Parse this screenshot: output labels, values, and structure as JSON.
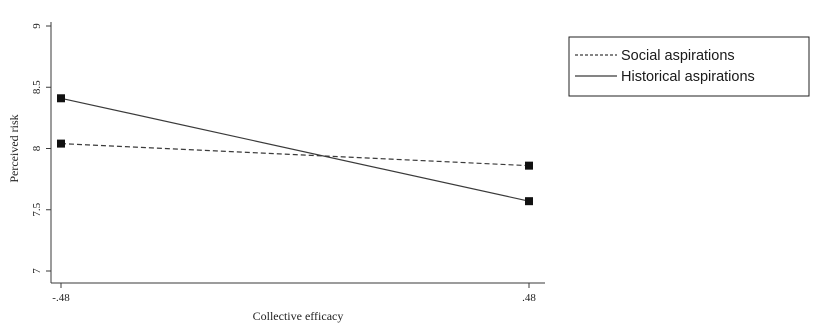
{
  "chart_data": {
    "type": "line",
    "title": "",
    "xlabel": "Collective efficacy",
    "ylabel": "Perceived risk",
    "x": [
      -0.48,
      0.48
    ],
    "x_tick_labels": [
      "-.48",
      ".48"
    ],
    "xlim": [
      -0.48,
      0.48
    ],
    "ylim": [
      7,
      9
    ],
    "y_ticks": [
      7,
      7.5,
      8,
      8.5,
      9
    ],
    "y_tick_labels": [
      "7",
      "7.5",
      "8",
      "8.5",
      "9"
    ],
    "grid": false,
    "legend_position": "top-right outside",
    "series": [
      {
        "name": "Social aspirations",
        "line_style": "dashed",
        "marker": "square",
        "values": [
          8.04,
          7.86
        ]
      },
      {
        "name": "Historical aspirations",
        "line_style": "solid",
        "marker": "square",
        "values": [
          8.41,
          7.57
        ]
      }
    ],
    "colors": {
      "line": "#3a3a3a",
      "marker": "#111111",
      "axis": "#3a3a3a"
    }
  }
}
